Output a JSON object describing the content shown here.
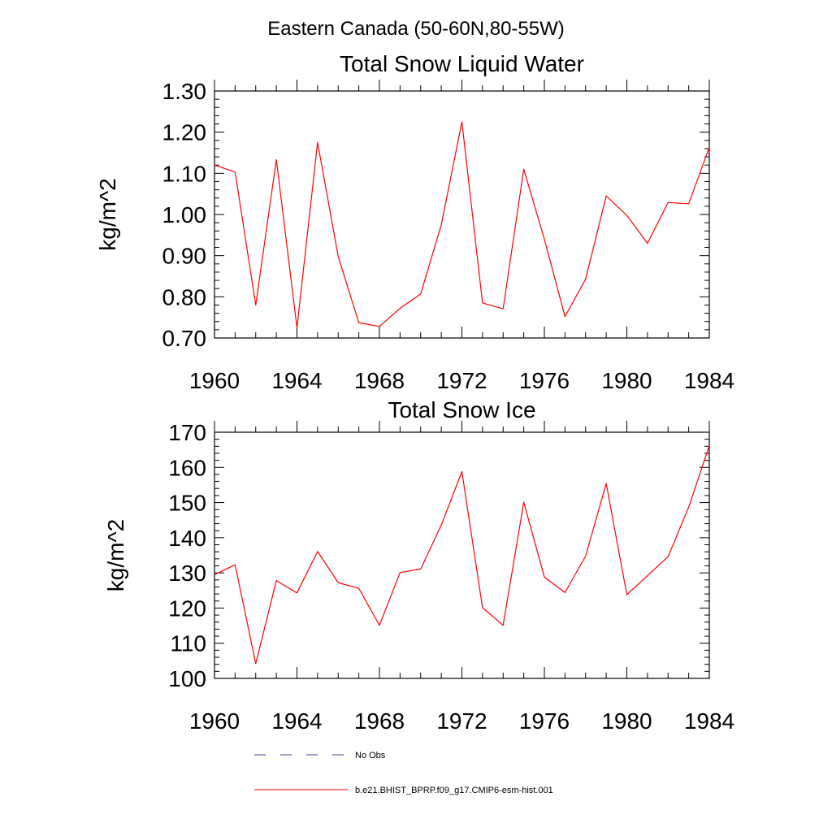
{
  "suptitle": "Eastern Canada (50-60N,80-55W)",
  "chart_data": [
    {
      "type": "line",
      "title": "Total Snow Liquid Water",
      "xlabel": "",
      "ylabel": "kg/m^2",
      "xlim": [
        1960,
        1984
      ],
      "ylim": [
        0.7,
        1.3
      ],
      "grid": false,
      "x_ticks": [
        1960,
        1964,
        1968,
        1972,
        1976,
        1980,
        1984
      ],
      "x_tick_labels": [
        "1960",
        "1964",
        "1968",
        "1972",
        "1976",
        "1980",
        "1984"
      ],
      "y_ticks": [
        0.7,
        0.8,
        0.9,
        1.0,
        1.1,
        1.2,
        1.3
      ],
      "y_tick_labels": [
        "0.70",
        "0.80",
        "0.90",
        "1.00",
        "1.10",
        "1.20",
        "1.30"
      ],
      "x": [
        1960,
        1961,
        1962,
        1963,
        1964,
        1965,
        1966,
        1967,
        1968,
        1969,
        1970,
        1971,
        1972,
        1973,
        1974,
        1975,
        1976,
        1977,
        1978,
        1979,
        1980,
        1981,
        1982,
        1983,
        1984
      ],
      "series": [
        {
          "name": "b.e21.BHIST_BPRP.f09_g17.CMIP6-esm-hist.001",
          "color": "#ff0000",
          "values": [
            1.12,
            1.103,
            0.78,
            1.133,
            0.725,
            1.175,
            0.898,
            0.737,
            0.728,
            0.772,
            0.807,
            0.975,
            1.225,
            0.785,
            0.771,
            1.11,
            0.94,
            0.752,
            0.843,
            1.045,
            0.998,
            0.93,
            1.029,
            1.026,
            1.163
          ]
        }
      ]
    },
    {
      "type": "line",
      "title": "Total Snow Ice",
      "xlabel": "",
      "ylabel": "kg/m^2",
      "xlim": [
        1960,
        1984
      ],
      "ylim": [
        100,
        170
      ],
      "grid": false,
      "x_ticks": [
        1960,
        1964,
        1968,
        1972,
        1976,
        1980,
        1984
      ],
      "x_tick_labels": [
        "1960",
        "1964",
        "1968",
        "1972",
        "1976",
        "1980",
        "1984"
      ],
      "y_ticks": [
        100,
        110,
        120,
        130,
        140,
        150,
        160,
        170
      ],
      "y_tick_labels": [
        "100",
        "110",
        "120",
        "130",
        "140",
        "150",
        "160",
        "170"
      ],
      "x": [
        1960,
        1961,
        1962,
        1963,
        1964,
        1965,
        1966,
        1967,
        1968,
        1969,
        1970,
        1971,
        1972,
        1973,
        1974,
        1975,
        1976,
        1977,
        1978,
        1979,
        1980,
        1981,
        1982,
        1983,
        1984
      ],
      "series": [
        {
          "name": "b.e21.BHIST_BPRP.f09_g17.CMIP6-esm-hist.001",
          "color": "#ff0000",
          "values": [
            129.5,
            132.3,
            104.2,
            127.8,
            124.3,
            136.1,
            127.2,
            125.6,
            115.1,
            130.1,
            131.1,
            143.6,
            158.8,
            120.1,
            115.1,
            150.1,
            128.8,
            124.4,
            134.8,
            155.4,
            123.8,
            129.2,
            134.6,
            148.7,
            166.2
          ]
        }
      ]
    }
  ],
  "legend": {
    "items": [
      {
        "label": "No Obs",
        "color": "#3b3b8f",
        "style": "dashed"
      },
      {
        "label": "b.e21.BHIST_BPRP.f09_g17.CMIP6-esm-hist.001",
        "color": "#ff0000",
        "style": "solid"
      }
    ]
  }
}
